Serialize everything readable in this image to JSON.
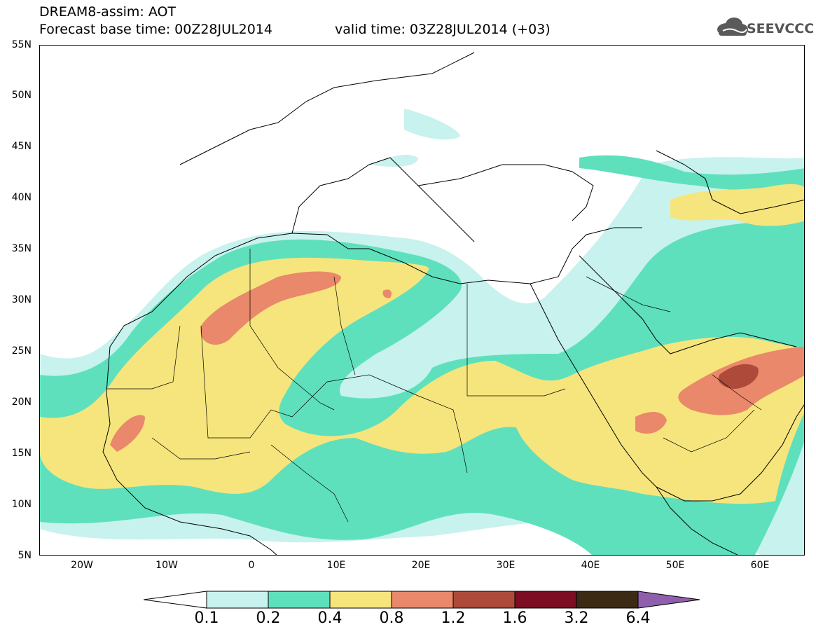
{
  "header": {
    "title": "DREAM8-assim: AOT",
    "base_time": "Forecast base time: 00Z28JUL2014",
    "valid_time": "valid time: 03Z28JUL2014 (+03)",
    "logo_text": "SEEVCCC"
  },
  "map": {
    "lat_ticks": [
      "55N",
      "50N",
      "45N",
      "40N",
      "35N",
      "30N",
      "25N",
      "20N",
      "15N",
      "10N",
      "5N"
    ],
    "lon_ticks": [
      "20W",
      "10W",
      "0",
      "10E",
      "20E",
      "30E",
      "40E",
      "50E",
      "60E"
    ],
    "extent": {
      "lon": [
        -25,
        65
      ],
      "lat": [
        5,
        55
      ]
    }
  },
  "colorbar": {
    "labels": [
      "0.1",
      "0.2",
      "0.4",
      "0.8",
      "1.2",
      "1.6",
      "3.2",
      "6.4"
    ],
    "colors": [
      "#c7f2ee",
      "#5ee0bd",
      "#f6e57c",
      "#e9886a",
      "#ad4a3a",
      "#7c0d23",
      "#3d2a15",
      "#8f5fae"
    ]
  }
}
